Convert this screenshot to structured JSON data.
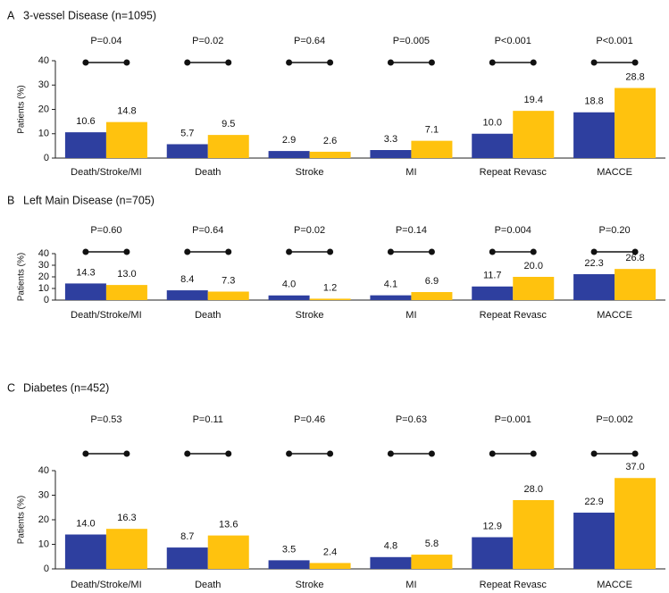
{
  "chart_data": [
    {
      "type": "bar",
      "label": "A",
      "title": "3-vessel Disease (n=1095)",
      "ylabel": "Patients (%)",
      "categories": [
        "Death/Stroke/MI",
        "Death",
        "Stroke",
        "MI",
        "Repeat Revasc",
        "MACCE"
      ],
      "annotations": [
        "P=0.04",
        "P=0.02",
        "P=0.64",
        "P=0.005",
        "P<0.001",
        "P<0.001"
      ],
      "series": [
        {
          "color": "#2e3f9f",
          "values": [
            10.6,
            5.7,
            2.9,
            3.3,
            10.0,
            18.8
          ],
          "value_labels": [
            "10.6",
            "5.7",
            "2.9",
            "3.3",
            "10.0",
            "18.8"
          ]
        },
        {
          "color": "#ffc20e",
          "values": [
            14.8,
            9.5,
            2.6,
            7.1,
            19.4,
            28.8
          ],
          "value_labels": [
            "14.8",
            "9.5",
            "2.6",
            "7.1",
            "19.4",
            "28.8"
          ]
        }
      ],
      "ylim": [
        0,
        40
      ],
      "yticks": [
        0,
        10,
        20,
        30,
        40
      ]
    },
    {
      "type": "bar",
      "label": "B",
      "title": "Left Main Disease (n=705)",
      "ylabel": "Patients (%)",
      "categories": [
        "Death/Stroke/MI",
        "Death",
        "Stroke",
        "MI",
        "Repeat Revasc",
        "MACCE"
      ],
      "annotations": [
        "P=0.60",
        "P=0.64",
        "P=0.02",
        "P=0.14",
        "P=0.004",
        "P=0.20"
      ],
      "series": [
        {
          "color": "#2e3f9f",
          "values": [
            14.3,
            8.4,
            4.0,
            4.1,
            11.7,
            22.3
          ],
          "value_labels": [
            "14.3",
            "8.4",
            "4.0",
            "4.1",
            "11.7",
            "22.3"
          ]
        },
        {
          "color": "#ffc20e",
          "values": [
            13.0,
            7.3,
            1.2,
            6.9,
            20.0,
            26.8
          ],
          "value_labels": [
            "13.0",
            "7.3",
            "1.2",
            "6.9",
            "20.0",
            "26.8"
          ]
        }
      ],
      "ylim": [
        0,
        40
      ],
      "yticks": [
        0,
        10,
        20,
        30,
        40
      ]
    },
    {
      "type": "bar",
      "label": "C",
      "title": "Diabetes (n=452)",
      "ylabel": "Patients (%)",
      "categories": [
        "Death/Stroke/MI",
        "Death",
        "Stroke",
        "MI",
        "Repeat Revasc",
        "MACCE"
      ],
      "annotations": [
        "P=0.53",
        "P=0.11",
        "P=0.46",
        "P=0.63",
        "P=0.001",
        "P=0.002"
      ],
      "series": [
        {
          "color": "#2e3f9f",
          "values": [
            14.0,
            8.7,
            3.5,
            4.8,
            12.9,
            22.9
          ],
          "value_labels": [
            "14.0",
            "8.7",
            "3.5",
            "4.8",
            "12.9",
            "22.9"
          ]
        },
        {
          "color": "#ffc20e",
          "values": [
            16.3,
            13.6,
            2.4,
            5.8,
            28.0,
            37.0
          ],
          "value_labels": [
            "16.3",
            "13.6",
            "2.4",
            "5.8",
            "28.0",
            "37.0"
          ]
        }
      ],
      "ylim": [
        0,
        40
      ],
      "yticks": [
        0,
        10,
        20,
        30,
        40
      ]
    }
  ]
}
